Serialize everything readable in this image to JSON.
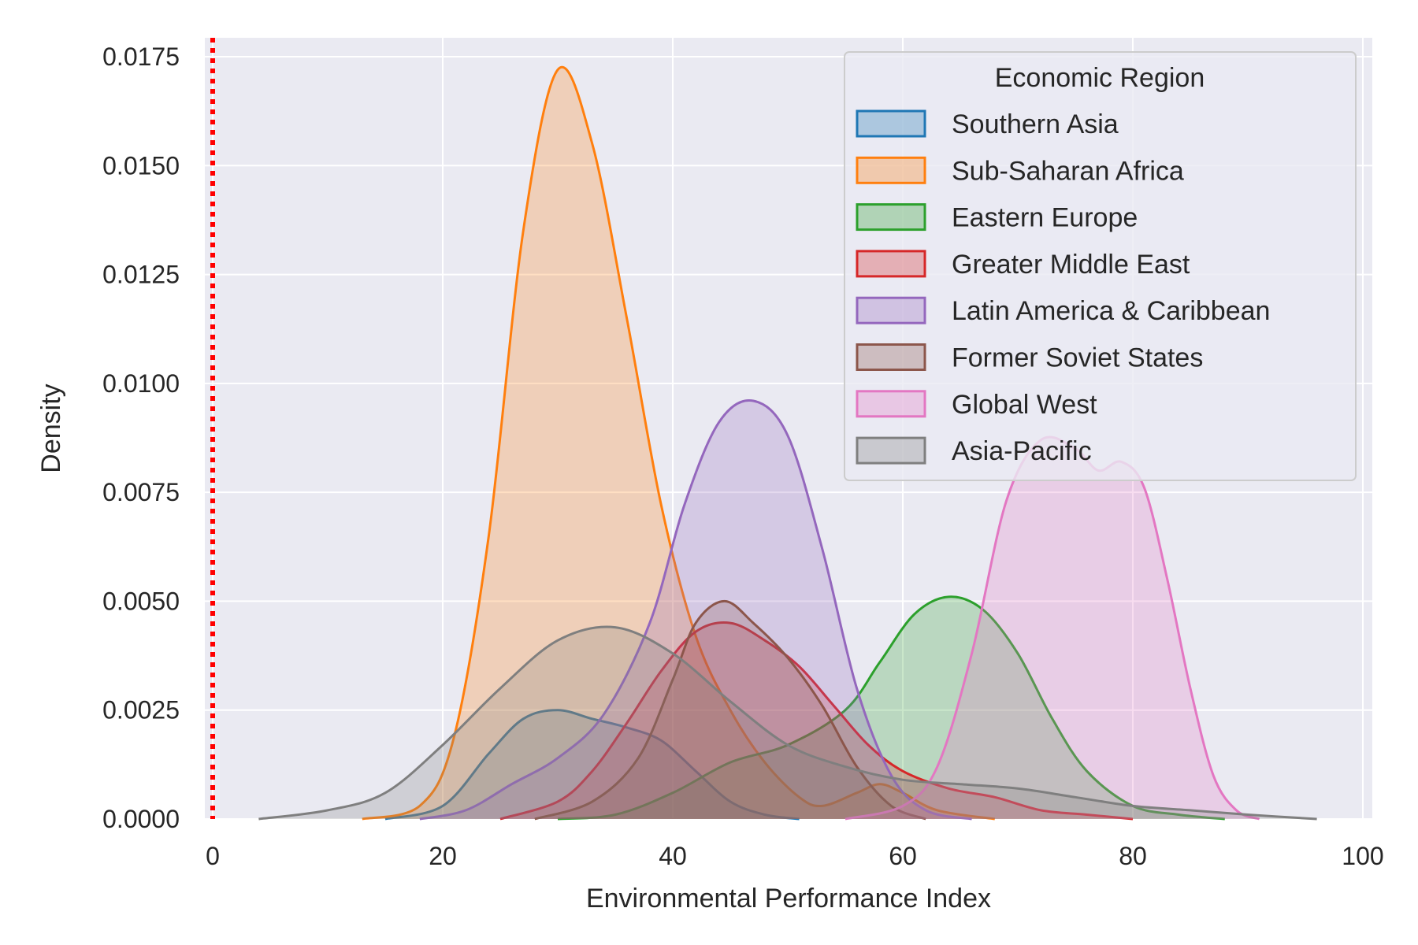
{
  "chart_data": {
    "type": "area",
    "title": "",
    "xlabel": "Environmental Performance Index",
    "ylabel": "Density",
    "xlim": [
      0,
      100
    ],
    "ylim": [
      0,
      0.018
    ],
    "xticks": [
      0,
      20,
      40,
      60,
      80,
      100
    ],
    "xtick_labels": [
      "0",
      "20",
      "40",
      "60",
      "80",
      "100"
    ],
    "yticks": [
      0,
      0.0025,
      0.005,
      0.0075,
      0.01,
      0.0125,
      0.015,
      0.0175
    ],
    "ytick_labels": [
      "0.0000",
      "0.0025",
      "0.0050",
      "0.0075",
      "0.0100",
      "0.0125",
      "0.0150",
      "0.0175"
    ],
    "grid": true,
    "background": "#eaeaf2",
    "reference_line": {
      "x": 0,
      "color": "#ff0000",
      "style": "dotted"
    },
    "legend": {
      "title": "Economic Region",
      "placement": "top-right"
    },
    "series": [
      {
        "name": "Southern Asia",
        "color": "#1f77b4",
        "x": [
          15,
          20,
          24,
          27,
          30,
          33,
          36,
          39,
          42,
          45,
          48,
          51
        ],
        "y": [
          0,
          0.0003,
          0.0015,
          0.0023,
          0.0025,
          0.0023,
          0.0021,
          0.0018,
          0.0011,
          0.0004,
          0.0001,
          0
        ]
      },
      {
        "name": "Sub-Saharan Africa",
        "color": "#ff7f0e",
        "x": [
          13,
          18,
          21,
          24,
          27,
          30,
          33,
          36,
          39,
          42,
          45,
          48,
          51,
          53,
          56,
          58,
          60,
          63,
          68
        ],
        "y": [
          0,
          0.0003,
          0.0019,
          0.0065,
          0.0135,
          0.0172,
          0.0155,
          0.0115,
          0.0072,
          0.0042,
          0.0025,
          0.0013,
          0.0005,
          0.0003,
          0.0006,
          0.0008,
          0.0006,
          0.0002,
          0
        ]
      },
      {
        "name": "Eastern Europe",
        "color": "#2ca02c",
        "x": [
          30,
          35,
          40,
          45,
          50,
          55,
          58,
          61,
          64,
          67,
          70,
          73,
          76,
          80,
          84,
          88
        ],
        "y": [
          0,
          0.0001,
          0.0006,
          0.0013,
          0.0017,
          0.0025,
          0.0036,
          0.0047,
          0.0051,
          0.0048,
          0.0038,
          0.0023,
          0.0011,
          0.0003,
          0.0001,
          0
        ]
      },
      {
        "name": "Greater Middle East",
        "color": "#d62728",
        "x": [
          25,
          30,
          33,
          36,
          39,
          42,
          45,
          48,
          51,
          54,
          57,
          60,
          64,
          68,
          72,
          76,
          80
        ],
        "y": [
          0,
          0.0004,
          0.0011,
          0.0022,
          0.0034,
          0.0043,
          0.0045,
          0.0041,
          0.0035,
          0.0026,
          0.0017,
          0.0011,
          0.0007,
          0.0005,
          0.0002,
          0.0001,
          0
        ]
      },
      {
        "name": "Latin America & Caribbean",
        "color": "#9467bd",
        "x": [
          18,
          22,
          26,
          30,
          34,
          38,
          41,
          44,
          47,
          50,
          53,
          56,
          59,
          62,
          66
        ],
        "y": [
          0,
          0.0002,
          0.0008,
          0.0014,
          0.0024,
          0.0045,
          0.0072,
          0.0091,
          0.0096,
          0.0088,
          0.0062,
          0.003,
          0.001,
          0.0002,
          0
        ]
      },
      {
        "name": "Former Soviet States",
        "color": "#8c564b",
        "x": [
          28,
          33,
          37,
          40,
          42,
          44.5,
          47,
          50,
          53,
          56,
          59,
          62
        ],
        "y": [
          0,
          0.0004,
          0.0014,
          0.0032,
          0.0045,
          0.005,
          0.0045,
          0.0037,
          0.0026,
          0.0012,
          0.0003,
          0
        ]
      },
      {
        "name": "Global West",
        "color": "#e377c2",
        "x": [
          55,
          60,
          63,
          66,
          69,
          72,
          75,
          77,
          79,
          81,
          83,
          85,
          87,
          89,
          91
        ],
        "y": [
          0,
          0.0003,
          0.0012,
          0.0038,
          0.0073,
          0.0087,
          0.0085,
          0.008,
          0.0082,
          0.0076,
          0.0055,
          0.003,
          0.001,
          0.0002,
          0
        ]
      },
      {
        "name": "Asia-Pacific",
        "color": "#7f7f7f",
        "x": [
          4,
          10,
          15,
          20,
          25,
          30,
          35,
          40,
          45,
          50,
          55,
          60,
          65,
          70,
          75,
          80,
          85,
          90,
          96
        ],
        "y": [
          0,
          0.0002,
          0.0006,
          0.0017,
          0.003,
          0.0041,
          0.0044,
          0.0038,
          0.0027,
          0.0017,
          0.0012,
          0.0009,
          0.0008,
          0.0007,
          0.0005,
          0.0003,
          0.0002,
          0.0001,
          0
        ]
      }
    ]
  }
}
